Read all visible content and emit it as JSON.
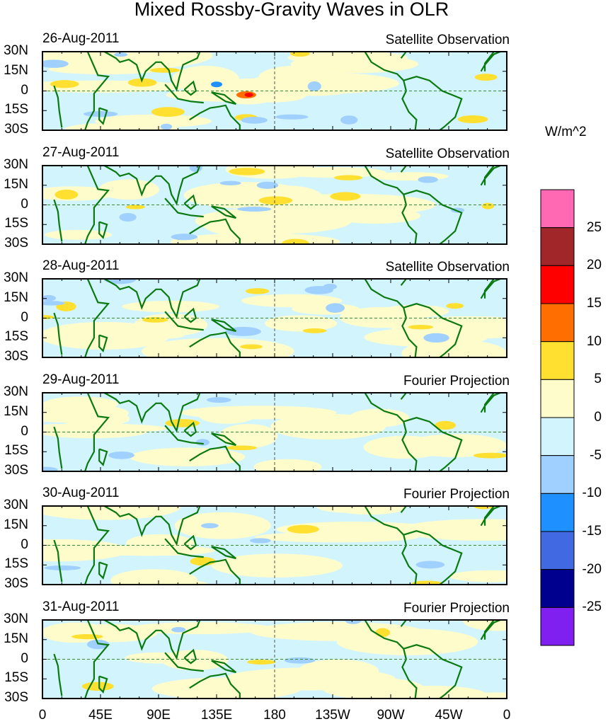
{
  "title": "Mixed Rossby-Gravity Waves in OLR",
  "units": "W/m^2",
  "panels": [
    {
      "date": "26-Aug-2011",
      "source": "Satellite Observation"
    },
    {
      "date": "27-Aug-2011",
      "source": "Satellite Observation"
    },
    {
      "date": "28-Aug-2011",
      "source": "Satellite Observation"
    },
    {
      "date": "29-Aug-2011",
      "source": "Fourier Projection"
    },
    {
      "date": "30-Aug-2011",
      "source": "Fourier Projection"
    },
    {
      "date": "31-Aug-2011",
      "source": "Fourier Projection"
    }
  ],
  "lat_ticks": [
    "30N",
    "15N",
    "0",
    "15S",
    "30S"
  ],
  "lon_ticks": [
    "0",
    "45E",
    "90E",
    "135E",
    "180",
    "135W",
    "90W",
    "45W",
    "0"
  ],
  "chart_data": {
    "type": "heatmap",
    "title": "Mixed Rossby-Gravity Waves in OLR",
    "xlabel": "",
    "ylabel": "",
    "xlim": [
      0,
      360
    ],
    "ylim": [
      -30,
      30
    ],
    "colorbar": {
      "levels": [
        "25",
        "20",
        "15",
        "10",
        "5",
        "0",
        "-5",
        "-10",
        "-15",
        "-20",
        "-25"
      ],
      "colors": [
        "#ff69b4",
        "#a0262a",
        "#ff0000",
        "#ff6e00",
        "#ffe030",
        "#fffccc",
        "#d2f4fd",
        "#a0d0ff",
        "#1e90ff",
        "#4169e1",
        "#00008e",
        "#8020f0"
      ]
    }
  }
}
